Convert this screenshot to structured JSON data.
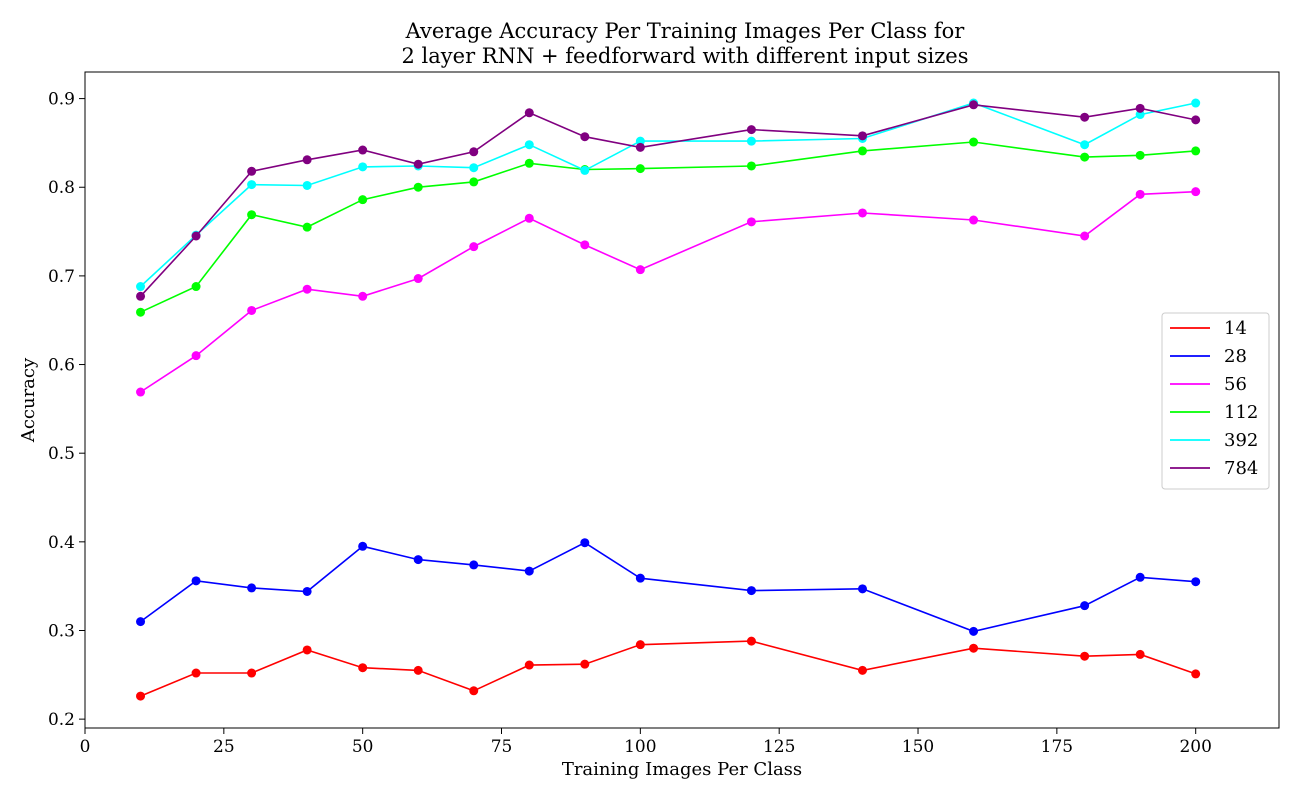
{
  "chart_data": {
    "type": "line",
    "title_line1": "Average Accuracy Per Training Images Per Class for",
    "title_line2": "2 layer RNN + feedforward with different input sizes",
    "xlabel": "Training Images Per Class",
    "ylabel": "Accuracy",
    "xlim": [
      0,
      215
    ],
    "ylim": [
      0.19,
      0.93
    ],
    "xticks": [
      0,
      25,
      50,
      75,
      100,
      125,
      150,
      175,
      200
    ],
    "yticks": [
      0.2,
      0.3,
      0.4,
      0.5,
      0.6,
      0.7,
      0.8,
      0.9
    ],
    "grid": false,
    "legend_position": "center-right",
    "x": [
      10,
      20,
      30,
      40,
      50,
      60,
      70,
      80,
      90,
      100,
      120,
      140,
      160,
      180,
      190,
      200
    ],
    "series": [
      {
        "name": "14",
        "color": "#ff0000",
        "values": [
          0.226,
          0.252,
          0.252,
          0.278,
          0.258,
          0.255,
          0.232,
          0.261,
          0.262,
          0.284,
          0.288,
          0.255,
          0.28,
          0.271,
          0.273,
          0.251
        ]
      },
      {
        "name": "28",
        "color": "#0000ff",
        "values": [
          0.31,
          0.356,
          0.348,
          0.344,
          0.395,
          0.38,
          0.374,
          0.367,
          0.399,
          0.359,
          0.345,
          0.347,
          0.299,
          0.328,
          0.36,
          0.355
        ]
      },
      {
        "name": "56",
        "color": "#ff00ff",
        "values": [
          0.569,
          0.61,
          0.661,
          0.685,
          0.677,
          0.697,
          0.733,
          0.765,
          0.735,
          0.707,
          0.761,
          0.771,
          0.763,
          0.745,
          0.792,
          0.795
        ]
      },
      {
        "name": "112",
        "color": "#00ff00",
        "values": [
          0.659,
          0.688,
          0.769,
          0.755,
          0.786,
          0.8,
          0.806,
          0.827,
          0.82,
          0.821,
          0.824,
          0.841,
          0.851,
          0.834,
          0.836,
          0.841
        ]
      },
      {
        "name": "392",
        "color": "#00ffff",
        "values": [
          0.688,
          0.746,
          0.803,
          0.802,
          0.823,
          0.824,
          0.822,
          0.848,
          0.819,
          0.852,
          0.852,
          0.855,
          0.895,
          0.848,
          0.882,
          0.895
        ]
      },
      {
        "name": "784",
        "color": "#800080",
        "values": [
          0.677,
          0.745,
          0.818,
          0.831,
          0.842,
          0.826,
          0.84,
          0.884,
          0.857,
          0.845,
          0.865,
          0.858,
          0.893,
          0.879,
          0.889,
          0.876
        ]
      }
    ]
  }
}
